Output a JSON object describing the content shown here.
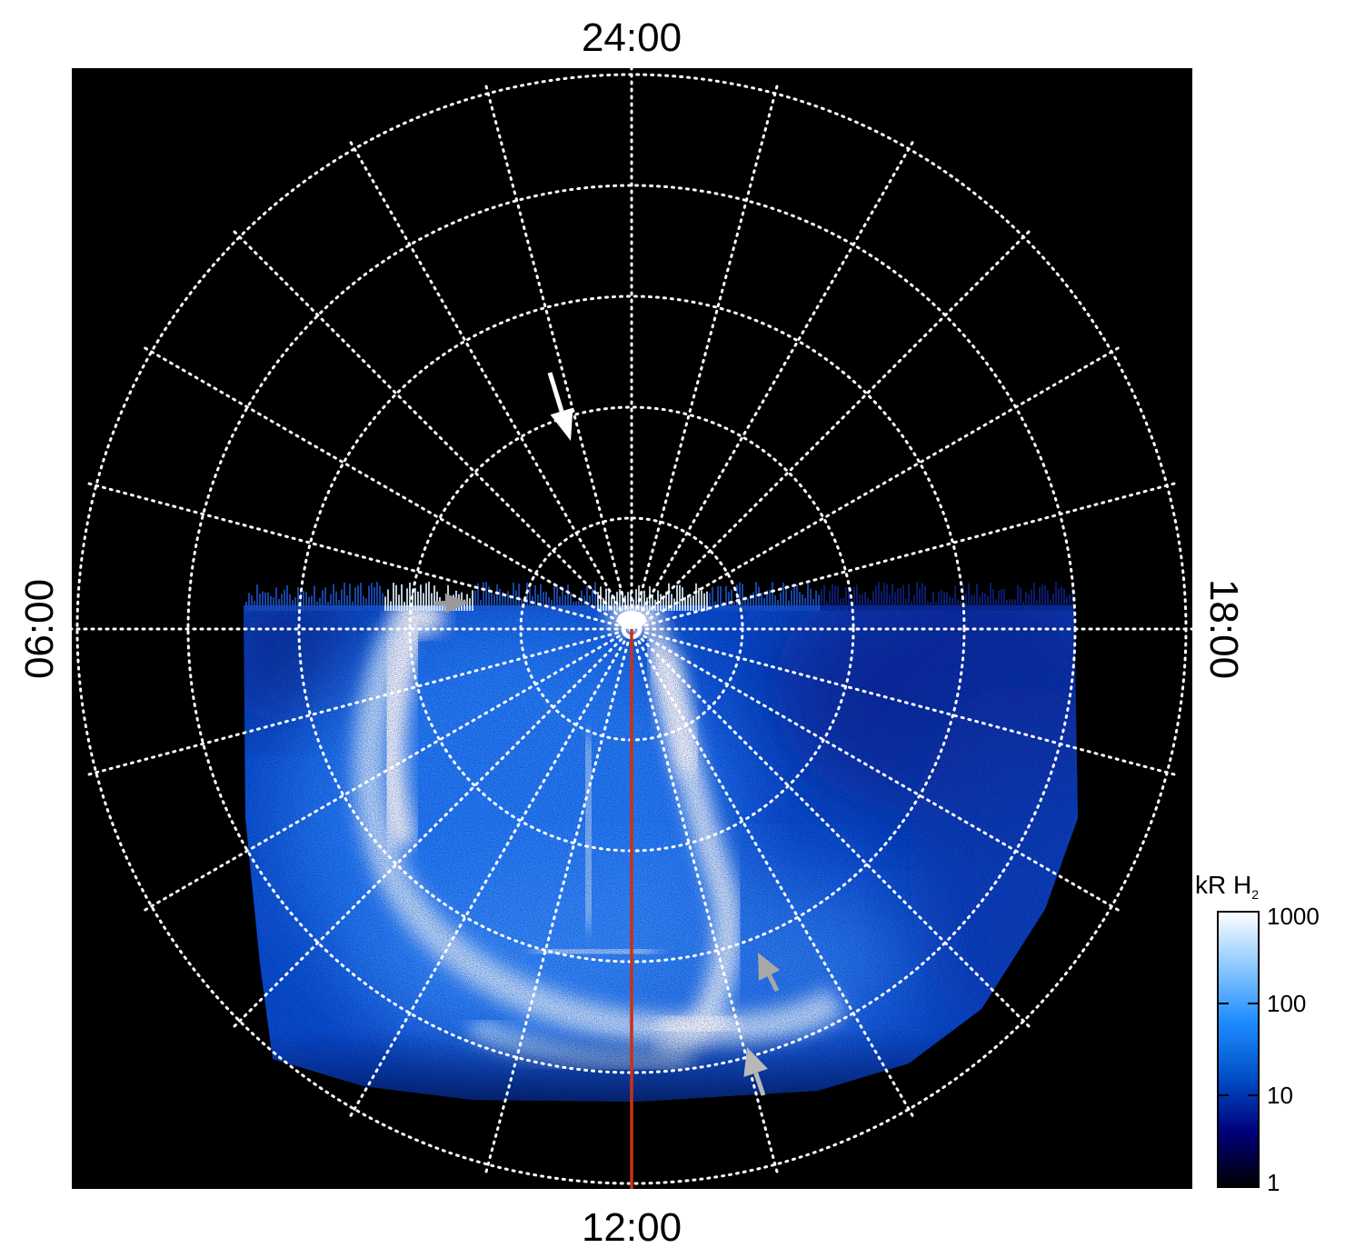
{
  "chart_data": {
    "type": "heatmap",
    "projection": "polar",
    "title": "",
    "local_time_labels": {
      "top": "24:00",
      "bottom": "12:00",
      "left": "06:00",
      "right": "18:00"
    },
    "colorbar": {
      "label_main": "kR H",
      "label_sub": "2",
      "scale": "log",
      "range": [
        1,
        1000
      ],
      "ticks": [
        "1000",
        "100",
        "10",
        "1"
      ],
      "colors": [
        "#000000",
        "#00007a",
        "#0050c8",
        "#1e8cff",
        "#8cc8ff",
        "#ffffff"
      ]
    },
    "grid": {
      "latitude_circles": 5,
      "meridians": 24,
      "style": "dotted",
      "color": "#ffffff"
    },
    "annotations": {
      "reference_line_color": "#c83214",
      "arrows": [
        {
          "color": "#ffffff"
        },
        {
          "color": "#9a9a9a"
        },
        {
          "color": "#a8a8a8"
        },
        {
          "color": "#b8b8b8"
        }
      ]
    }
  }
}
